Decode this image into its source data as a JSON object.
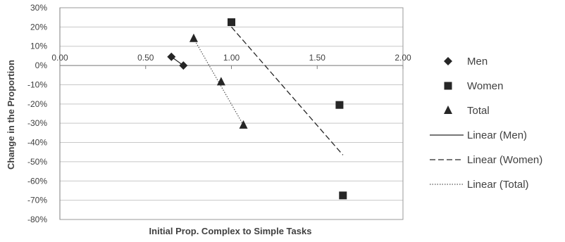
{
  "chart_data": {
    "type": "scatter",
    "title": "",
    "xlabel": "Initial Prop. Complex to Simple Tasks",
    "ylabel": "Change in the Proportion",
    "xlim": [
      0,
      2
    ],
    "ylim": [
      -0.8,
      0.3
    ],
    "x_ticks": [
      0,
      0.5,
      1,
      1.5,
      2
    ],
    "x_tick_labels": [
      "0.00",
      "0.50",
      "1.00",
      "1.50",
      "2.00"
    ],
    "y_ticks": [
      0.3,
      0.2,
      0.1,
      0,
      -0.1,
      -0.2,
      -0.3,
      -0.4,
      -0.5,
      -0.6,
      -0.7,
      -0.8
    ],
    "y_tick_labels": [
      "30%",
      "20%",
      "10%",
      "0%",
      "-10%",
      "-20%",
      "-30%",
      "-40%",
      "-50%",
      "-60%",
      "-70%",
      "-80%"
    ],
    "grid": "horizontal",
    "legend_position": "right",
    "series": [
      {
        "name": "Men",
        "marker": "diamond",
        "color": "#262626",
        "points": [
          [
            0.65,
            0.045
          ],
          [
            0.72,
            0.0
          ]
        ]
      },
      {
        "name": "Women",
        "marker": "square",
        "color": "#262626",
        "points": [
          [
            1.0,
            0.225
          ],
          [
            1.63,
            -0.205
          ],
          [
            1.65,
            -0.675
          ]
        ]
      },
      {
        "name": "Total",
        "marker": "triangle",
        "color": "#262626",
        "points": [
          [
            0.78,
            0.14
          ],
          [
            0.94,
            -0.085
          ],
          [
            1.07,
            -0.31
          ]
        ]
      }
    ],
    "trendlines": [
      {
        "name": "Linear (Men)",
        "style": "solid",
        "color": "#262626",
        "line": [
          [
            0.65,
            0.045
          ],
          [
            0.72,
            0.0
          ]
        ]
      },
      {
        "name": "Linear (Women)",
        "style": "dashed",
        "color": "#262626",
        "line": [
          [
            1.0,
            0.2
          ],
          [
            1.65,
            -0.465
          ]
        ]
      },
      {
        "name": "Linear (Total)",
        "style": "dotted",
        "color": "#555555",
        "line": [
          [
            0.78,
            0.14
          ],
          [
            1.07,
            -0.31
          ]
        ]
      }
    ]
  }
}
